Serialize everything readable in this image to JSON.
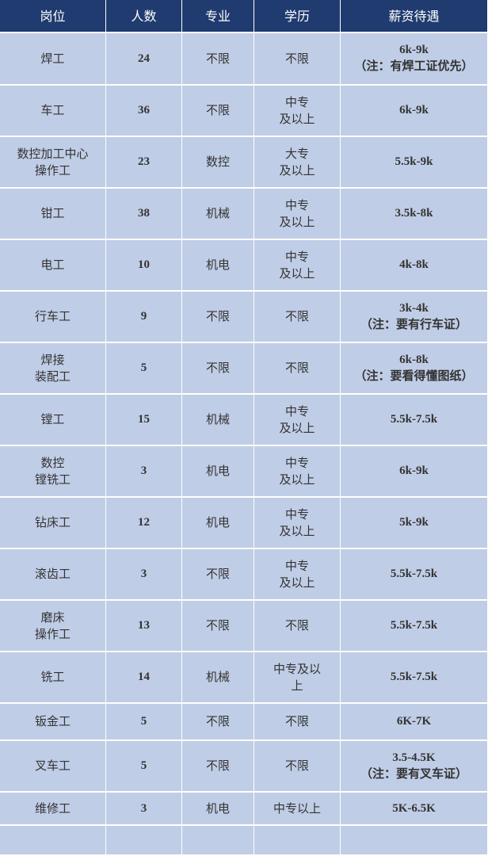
{
  "table": {
    "header": [
      "岗位",
      "人数",
      "专业",
      "学历",
      "薪资待遇"
    ],
    "rows": [
      [
        "焊工",
        24,
        "不限",
        "不限",
        "6k-9k\n（注：有焊工证优先）"
      ],
      [
        "车工",
        36,
        "不限",
        "中专\n及以上",
        "6k-9k"
      ],
      [
        "数控加工中心\n操作工",
        23,
        "数控",
        "大专\n及以上",
        "5.5k-9k"
      ],
      [
        "钳工",
        38,
        "机械",
        "中专\n及以上",
        "3.5k-8k"
      ],
      [
        "电工",
        10,
        "机电",
        "中专\n及以上",
        "4k-8k"
      ],
      [
        "行车工",
        9,
        "不限",
        "不限",
        "3k-4k\n（注：要有行车证）"
      ],
      [
        "焊接\n装配工",
        5,
        "不限",
        "不限",
        "6k-8k\n（注：要看得懂图纸）"
      ],
      [
        "镗工",
        15,
        "机械",
        "中专\n及以上",
        "5.5k-7.5k"
      ],
      [
        "数控\n镗铣工",
        3,
        "机电",
        "中专\n及以上",
        "6k-9k"
      ],
      [
        "钻床工",
        12,
        "机电",
        "中专\n及以上",
        "5k-9k"
      ],
      [
        "滚齿工",
        3,
        "不限",
        "中专\n及以上",
        "5.5k-7.5k"
      ],
      [
        "磨床\n操作工",
        13,
        "不限",
        "不限",
        "5.5k-7.5k"
      ],
      [
        "铣工",
        14,
        "机械",
        "中专及以\n上",
        "5.5k-7.5k"
      ],
      [
        "钣金工",
        5,
        "不限",
        "不限",
        "6K-7K"
      ],
      [
        "叉车工",
        5,
        "不限",
        "不限",
        "3.5-4.5K\n（注：要有叉车证）"
      ],
      [
        "维修工",
        3,
        "机电",
        "中专以上",
        "5K-6.5K"
      ]
    ]
  }
}
